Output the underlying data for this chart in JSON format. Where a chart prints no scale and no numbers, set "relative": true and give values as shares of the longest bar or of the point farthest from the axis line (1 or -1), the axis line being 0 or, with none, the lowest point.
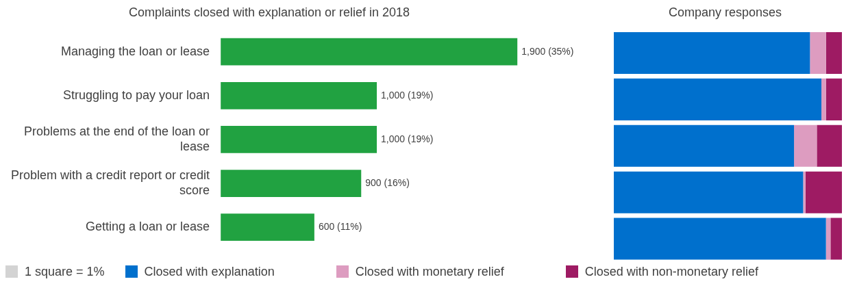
{
  "chart_data": [
    {
      "type": "bar",
      "orientation": "horizontal",
      "title": "Complaints closed with explanation or relief in 2018",
      "categories": [
        "Managing the loan or lease",
        "Struggling to pay your loan",
        "Problems at the end of the loan or lease",
        "Problem with a credit report or credit score",
        "Getting a loan or lease"
      ],
      "values": [
        1900,
        1000,
        1000,
        900,
        600
      ],
      "value_labels": [
        "1,900 (35%)",
        "1,000 (19%)",
        "1,000 (19%)",
        "900 (16%)",
        "600 (11%)"
      ],
      "color": "#21a241"
    },
    {
      "type": "bar",
      "orientation": "horizontal",
      "stacked": true,
      "relative": true,
      "title": "Company responses",
      "categories": [
        null,
        null,
        null,
        null,
        null
      ],
      "legend": "bottom",
      "annotations": [
        "1 square = 1%"
      ],
      "series": [
        {
          "name": "Closed with explanation",
          "color": "#0070cd",
          "values": [
            0.86,
            0.91,
            0.79,
            0.83,
            0.93
          ]
        },
        {
          "name": "Closed with monetary relief",
          "color": "#dd9cc0",
          "values": [
            0.07,
            0.02,
            0.1,
            0.01,
            0.02
          ]
        },
        {
          "name": "Closed with non-monetary relief",
          "color": "#9e1b63",
          "values": [
            0.07,
            0.07,
            0.11,
            0.16,
            0.05
          ]
        }
      ]
    }
  ]
}
